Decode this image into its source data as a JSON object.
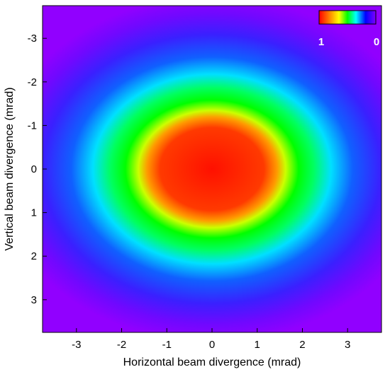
{
  "chart_data": {
    "type": "heatmap",
    "title": "",
    "xlabel": "Horizontal beam divergence (mrad)",
    "ylabel": "Vertical beam divergence (mrad)",
    "xlim": [
      -3.75,
      3.75
    ],
    "ylim": [
      3.75,
      -3.75
    ],
    "y_axis_inverted": true,
    "x_ticks": [
      "-3",
      "-2",
      "-1",
      "0",
      "1",
      "2",
      "3"
    ],
    "y_ticks": [
      "-3",
      "-2",
      "-1",
      "0",
      "1",
      "2",
      "3"
    ],
    "grid": false,
    "colorbar": {
      "placement": "top-right",
      "label_max": "1",
      "label_min": "0",
      "colors": [
        "#ff0000",
        "#ff8000",
        "#ffff00",
        "#00ff00",
        "#00ffff",
        "#0000ff",
        "#8000ff"
      ]
    },
    "beam_spot": {
      "center": [
        0.0,
        0.0
      ],
      "core_semi_axes_mrad": [
        1.15,
        0.95
      ],
      "peak_value": 1,
      "background_value": 0,
      "background_color": "#9100ff"
    }
  }
}
